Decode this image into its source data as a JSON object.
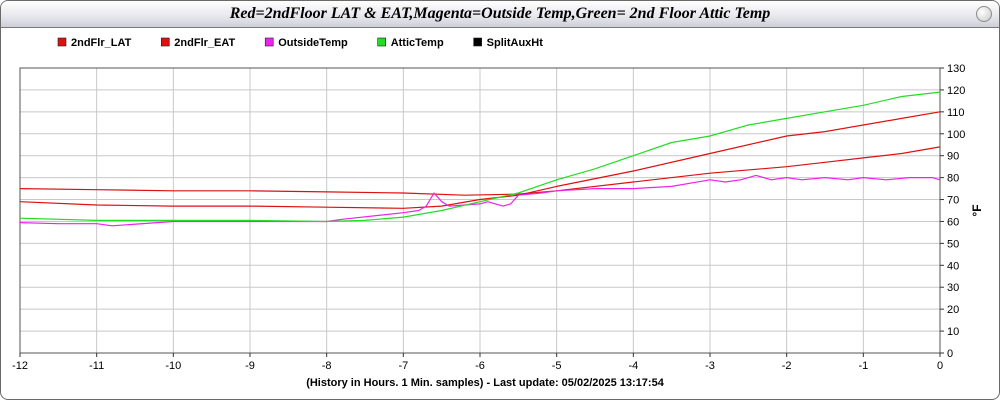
{
  "window": {
    "title": "Red=2ndFloor LAT & EAT,Magenta=Outside Temp,Green= 2nd Floor Attic Temp"
  },
  "colors": {
    "background": "#ffffff",
    "grid": "#c8c8c8",
    "red": "#dd1111",
    "magenta": "#ee22ee",
    "green": "#22dd22",
    "black": "#000000"
  },
  "chart_data": {
    "type": "line",
    "title": "Red=2ndFloor LAT & EAT,Magenta=Outside Temp,Green= 2nd Floor Attic Temp",
    "xlabel": "(History in Hours. 1 Min. samples) - Last update: 05/02/2025 13:17:54",
    "ylabel": "°F",
    "xlim": [
      -12,
      0
    ],
    "ylim": [
      0,
      130
    ],
    "x_ticks": [
      -12,
      -11,
      -10,
      -9,
      -8,
      -7,
      -6,
      -5,
      -4,
      -3,
      -2,
      -1,
      0
    ],
    "y_ticks": [
      0,
      10,
      20,
      30,
      40,
      50,
      60,
      70,
      80,
      90,
      100,
      110,
      120,
      130
    ],
    "grid": true,
    "legend_position": "top-left",
    "series": [
      {
        "name": "2ndFlr_LAT",
        "color": "#dd1111",
        "points": [
          [
            -12,
            75
          ],
          [
            -11,
            74.5
          ],
          [
            -10,
            74
          ],
          [
            -9,
            74
          ],
          [
            -8,
            73.5
          ],
          [
            -7,
            73
          ],
          [
            -6.2,
            72
          ],
          [
            -5.5,
            72.5
          ],
          [
            -5,
            74
          ],
          [
            -4,
            78
          ],
          [
            -3,
            82
          ],
          [
            -2,
            85
          ],
          [
            -1.5,
            87
          ],
          [
            -1,
            89
          ],
          [
            -0.5,
            91
          ],
          [
            0,
            94
          ]
        ]
      },
      {
        "name": "2ndFlr_EAT",
        "color": "#dd1111",
        "points": [
          [
            -12,
            69
          ],
          [
            -11,
            67.5
          ],
          [
            -10,
            67
          ],
          [
            -9,
            67
          ],
          [
            -8,
            66.5
          ],
          [
            -7,
            66
          ],
          [
            -6.5,
            67
          ],
          [
            -6,
            70
          ],
          [
            -5.5,
            72
          ],
          [
            -5,
            76
          ],
          [
            -4,
            83
          ],
          [
            -3,
            91
          ],
          [
            -2,
            99
          ],
          [
            -1.5,
            101
          ],
          [
            -1,
            104
          ],
          [
            -0.5,
            107
          ],
          [
            0,
            110
          ]
        ]
      },
      {
        "name": "OutsideTemp",
        "color": "#ee22ee",
        "points": [
          [
            -12,
            59.5
          ],
          [
            -11.5,
            59
          ],
          [
            -11,
            59
          ],
          [
            -10.8,
            58
          ],
          [
            -10,
            60
          ],
          [
            -9,
            60
          ],
          [
            -8,
            60
          ],
          [
            -7.8,
            61
          ],
          [
            -7,
            64
          ],
          [
            -6.8,
            65
          ],
          [
            -6.7,
            67
          ],
          [
            -6.6,
            73
          ],
          [
            -6.5,
            69
          ],
          [
            -6.4,
            67
          ],
          [
            -6,
            68
          ],
          [
            -5.9,
            69
          ],
          [
            -5.7,
            67
          ],
          [
            -5.6,
            68
          ],
          [
            -5.5,
            72
          ],
          [
            -5.2,
            73
          ],
          [
            -5,
            74
          ],
          [
            -4.5,
            75
          ],
          [
            -4,
            75
          ],
          [
            -3.5,
            76
          ],
          [
            -3,
            79
          ],
          [
            -2.8,
            78
          ],
          [
            -2.6,
            79
          ],
          [
            -2.4,
            81
          ],
          [
            -2.2,
            79
          ],
          [
            -2,
            80
          ],
          [
            -1.8,
            79
          ],
          [
            -1.5,
            80
          ],
          [
            -1.2,
            79
          ],
          [
            -1,
            80
          ],
          [
            -0.7,
            79
          ],
          [
            -0.4,
            80
          ],
          [
            -0.1,
            80
          ],
          [
            0,
            79
          ]
        ]
      },
      {
        "name": "AtticTemp",
        "color": "#22dd22",
        "points": [
          [
            -12,
            61.5
          ],
          [
            -11,
            60.5
          ],
          [
            -10,
            60.5
          ],
          [
            -9,
            60.5
          ],
          [
            -8,
            60
          ],
          [
            -7.5,
            60.5
          ],
          [
            -7,
            62
          ],
          [
            -6.5,
            65
          ],
          [
            -6,
            69
          ],
          [
            -5.5,
            73
          ],
          [
            -5,
            79
          ],
          [
            -4.5,
            84
          ],
          [
            -4,
            90
          ],
          [
            -3.5,
            96
          ],
          [
            -3,
            99
          ],
          [
            -2.5,
            104
          ],
          [
            -2,
            107
          ],
          [
            -1.5,
            110
          ],
          [
            -1,
            113
          ],
          [
            -0.5,
            117
          ],
          [
            0,
            119
          ]
        ]
      },
      {
        "name": "SplitAuxHt",
        "color": "#000000",
        "points": []
      }
    ]
  }
}
